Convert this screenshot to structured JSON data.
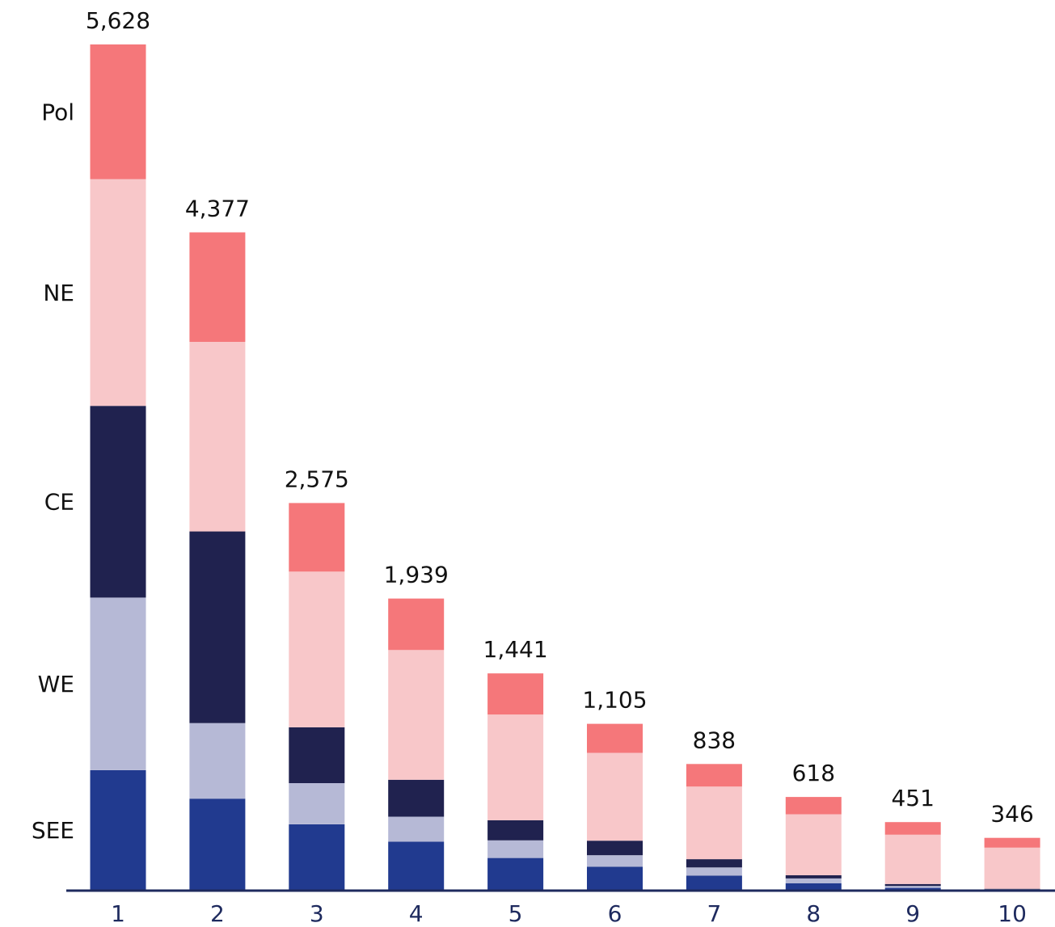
{
  "chart_data": {
    "type": "bar",
    "stacked": true,
    "categories": [
      "1",
      "2",
      "3",
      "4",
      "5",
      "6",
      "7",
      "8",
      "9",
      "10"
    ],
    "totals": [
      5628,
      4377,
      2575,
      1939,
      1441,
      1105,
      838,
      618,
      451,
      346
    ],
    "total_labels": [
      "5,628",
      "4,377",
      "2,575",
      "1,939",
      "1,441",
      "1,105",
      "838",
      "618",
      "451",
      "346"
    ],
    "series": [
      {
        "name": "SEE",
        "color": "#213a8f",
        "values": [
          797,
          607,
          436,
          320,
          212,
          154,
          94,
          44,
          13,
          2
        ]
      },
      {
        "name": "WE",
        "color": "#b6b9d6",
        "values": [
          1149,
          503,
          274,
          167,
          117,
          76,
          55,
          32,
          13,
          2
        ]
      },
      {
        "name": "CE",
        "color": "#20224f",
        "values": [
          1276,
          1276,
          372,
          246,
          134,
          97,
          55,
          21,
          13,
          3
        ]
      },
      {
        "name": "NE",
        "color": "#f8c7c9",
        "values": [
          1509,
          1262,
          1036,
          863,
          704,
          585,
          484,
          406,
          328,
          274
        ]
      },
      {
        "name": "Pol",
        "color": "#f5777a",
        "values": [
          897,
          729,
          457,
          343,
          274,
          193,
          150,
          115,
          84,
          65
        ]
      }
    ],
    "series_label_positions": [
      "SEE",
      "WE",
      "CE",
      "NE",
      "Pol"
    ],
    "axis_color": "#1e2a5e",
    "grid": false,
    "legend": "left side, inline labels"
  }
}
